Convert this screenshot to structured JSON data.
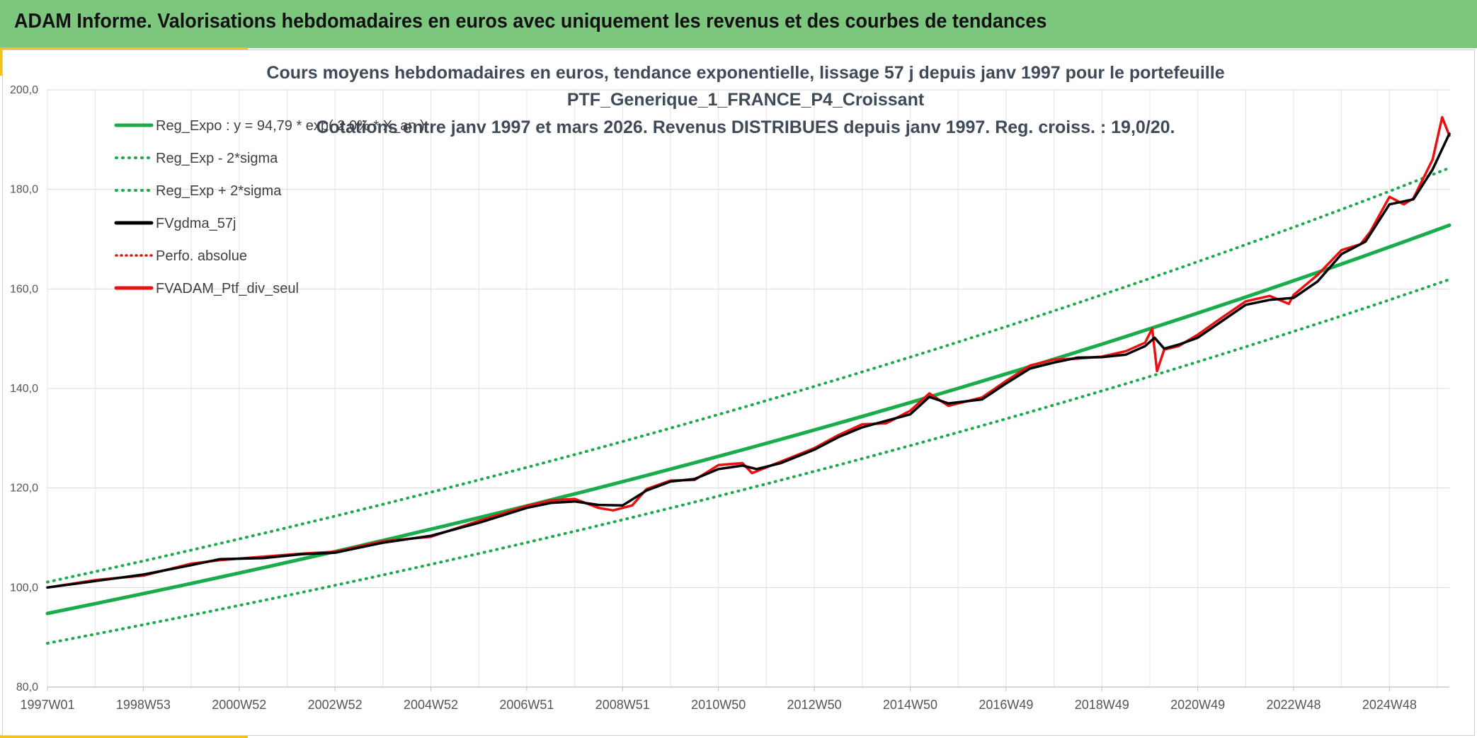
{
  "header": {
    "title": "ADAM Informe. Valorisations hebdomadaires en euros avec uniquement les revenus et des courbes de tendances",
    "background": "#7dc67e",
    "accent": "#f2c21b"
  },
  "chart_data": {
    "type": "line",
    "title": [
      "Cours moyens hebdomadaires en euros, tendance exponentielle, lissage 57 j depuis janv 1997 pour le portefeuille",
      "PTF_Generique_1_FRANCE_P4_Croissant",
      "Cotations entre janv 1997 et mars 2026. Revenus DISTRIBUES depuis janv 1997. Reg. croiss. : 19,0/20."
    ],
    "xlabel": "",
    "ylabel": "",
    "x_range_years": [
      1997.0,
      2026.25
    ],
    "ylim": [
      80,
      200
    ],
    "y_ticks": [
      {
        "value": 80,
        "label": "80,0"
      },
      {
        "value": 100,
        "label": "100,0"
      },
      {
        "value": 120,
        "label": "120,0"
      },
      {
        "value": 140,
        "label": "140,0"
      },
      {
        "value": 160,
        "label": "160,0"
      },
      {
        "value": 180,
        "label": "180,0"
      },
      {
        "value": 200,
        "label": "200,0"
      }
    ],
    "x_ticks": [
      {
        "t": 1997.0,
        "label": "1997W01"
      },
      {
        "t": 1999.0,
        "label": "1998W53"
      },
      {
        "t": 2001.0,
        "label": "2000W52"
      },
      {
        "t": 2003.0,
        "label": "2002W52"
      },
      {
        "t": 2005.0,
        "label": "2004W52"
      },
      {
        "t": 2007.0,
        "label": "2006W51"
      },
      {
        "t": 2009.0,
        "label": "2008W51"
      },
      {
        "t": 2011.0,
        "label": "2010W50"
      },
      {
        "t": 2013.0,
        "label": "2012W50"
      },
      {
        "t": 2015.0,
        "label": "2014W50"
      },
      {
        "t": 2017.0,
        "label": "2016W49"
      },
      {
        "t": 2019.0,
        "label": "2018W49"
      },
      {
        "t": 2021.0,
        "label": "2020W49"
      },
      {
        "t": 2023.0,
        "label": "2022W48"
      },
      {
        "t": 2025.0,
        "label": "2024W48"
      }
    ],
    "grid": true,
    "legend_position": "top-left",
    "series": [
      {
        "name": "Reg_Expo : y = 94,79 * exp( 2,0% *  X_an )",
        "color": "#1aab4a",
        "style": "solid",
        "x": [
          1997.0,
          2026.25
        ],
        "values": [
          94.8,
          172.8
        ]
      },
      {
        "name": "Reg_Exp - 2*sigma",
        "color": "#1aab4a",
        "style": "dotted",
        "x": [
          1997.0,
          2026.25
        ],
        "values": [
          88.8,
          161.9
        ]
      },
      {
        "name": "Reg_Exp + 2*sigma",
        "color": "#1aab4a",
        "style": "dotted",
        "x": [
          1997.0,
          2026.25
        ],
        "values": [
          101.1,
          184.3
        ]
      },
      {
        "name": "FVgdma_57j",
        "color": "#000000",
        "style": "solid",
        "x": [
          1997.0,
          1998.0,
          1999.0,
          2000.0,
          2000.6,
          2001.5,
          2002.3,
          2003.0,
          2004.0,
          2005.0,
          2006.0,
          2007.0,
          2007.5,
          2008.0,
          2008.5,
          2009.0,
          2009.5,
          2010.0,
          2010.5,
          2011.0,
          2011.5,
          2011.8,
          2012.3,
          2013.0,
          2013.5,
          2014.0,
          2014.5,
          2015.0,
          2015.4,
          2015.8,
          2016.5,
          2017.0,
          2017.5,
          2018.0,
          2018.5,
          2019.0,
          2019.5,
          2019.9,
          2020.1,
          2020.3,
          2020.6,
          2021.0,
          2021.5,
          2022.0,
          2022.5,
          2023.0,
          2023.5,
          2024.0,
          2024.5,
          2025.0,
          2025.5,
          2025.9,
          2026.25
        ],
        "values": [
          100.0,
          101.3,
          102.6,
          104.5,
          105.7,
          105.9,
          106.7,
          107.0,
          109.0,
          110.4,
          113.0,
          116.0,
          117.0,
          117.3,
          116.6,
          116.5,
          119.5,
          121.3,
          121.8,
          123.8,
          124.5,
          123.8,
          125.0,
          127.7,
          130.2,
          132.2,
          133.5,
          134.8,
          138.3,
          137.0,
          137.8,
          141.0,
          144.0,
          145.2,
          146.2,
          146.3,
          146.8,
          148.5,
          150.2,
          148.0,
          148.8,
          150.2,
          153.5,
          156.8,
          157.8,
          158.2,
          161.5,
          167.0,
          169.5,
          177.0,
          178.0,
          184.0,
          191.2
        ]
      },
      {
        "name": "Perfo. absolue",
        "color": "#e81010",
        "style": "dotted",
        "x": [
          1997.0,
          1998.0,
          1999.0,
          2000.0,
          2000.6,
          2001.5,
          2002.3,
          2003.0,
          2004.0,
          2005.0,
          2006.0,
          2007.0,
          2007.5,
          2008.0,
          2008.5,
          2009.0,
          2009.5,
          2010.0,
          2010.5,
          2011.0,
          2011.5,
          2011.8,
          2012.3,
          2013.0,
          2013.5,
          2014.0,
          2014.5,
          2015.0,
          2015.4,
          2015.8,
          2016.5,
          2017.0,
          2017.5,
          2018.0,
          2018.5,
          2019.0,
          2019.5,
          2019.9,
          2020.1,
          2020.3,
          2020.6,
          2021.0,
          2021.5,
          2022.0,
          2022.5,
          2023.0,
          2023.5,
          2024.0,
          2024.5,
          2025.0,
          2025.5,
          2025.9,
          2026.25
        ],
        "values": [
          100.0,
          101.3,
          102.6,
          104.5,
          105.7,
          105.9,
          106.7,
          107.0,
          109.0,
          110.4,
          113.0,
          116.0,
          117.0,
          117.3,
          116.6,
          116.5,
          119.5,
          121.3,
          121.8,
          123.8,
          124.5,
          123.8,
          125.0,
          127.7,
          130.2,
          132.2,
          133.5,
          134.8,
          138.3,
          137.0,
          137.8,
          141.0,
          144.0,
          145.2,
          146.2,
          146.3,
          146.8,
          148.5,
          150.2,
          148.0,
          148.8,
          150.2,
          153.5,
          156.8,
          157.8,
          158.2,
          161.5,
          167.0,
          169.5,
          177.0,
          178.0,
          184.0,
          191.2
        ]
      },
      {
        "name": "FVADAM_Ptf_div_seul",
        "color": "#e81010",
        "style": "solid",
        "x": [
          1997.0,
          1998.0,
          1999.0,
          2000.0,
          2000.6,
          2001.5,
          2002.3,
          2003.0,
          2004.0,
          2005.0,
          2006.0,
          2007.0,
          2007.5,
          2008.0,
          2008.5,
          2008.8,
          2009.2,
          2009.5,
          2010.0,
          2010.5,
          2011.0,
          2011.5,
          2011.7,
          2012.3,
          2013.0,
          2013.5,
          2014.0,
          2014.5,
          2015.0,
          2015.4,
          2015.8,
          2016.5,
          2017.0,
          2017.5,
          2018.0,
          2018.5,
          2019.0,
          2019.5,
          2019.9,
          2020.05,
          2020.15,
          2020.3,
          2020.6,
          2021.0,
          2021.5,
          2022.0,
          2022.5,
          2022.9,
          2023.0,
          2023.5,
          2024.0,
          2024.4,
          2024.6,
          2025.0,
          2025.3,
          2025.5,
          2025.9,
          2026.1,
          2026.25
        ],
        "values": [
          100.0,
          101.5,
          102.4,
          104.8,
          105.5,
          106.2,
          106.8,
          107.2,
          109.3,
          110.2,
          113.4,
          116.4,
          117.5,
          117.8,
          116.0,
          115.5,
          116.5,
          119.8,
          121.5,
          121.6,
          124.6,
          125.0,
          123.0,
          125.3,
          128.0,
          130.6,
          132.8,
          133.0,
          135.5,
          139.0,
          136.5,
          138.2,
          141.5,
          144.6,
          145.8,
          146.0,
          146.4,
          147.5,
          149.2,
          152.0,
          143.5,
          147.8,
          148.5,
          150.8,
          154.2,
          157.5,
          158.6,
          157.0,
          158.8,
          162.8,
          167.8,
          169.0,
          171.5,
          178.5,
          177.0,
          178.2,
          186.0,
          194.5,
          190.8
        ]
      }
    ]
  }
}
